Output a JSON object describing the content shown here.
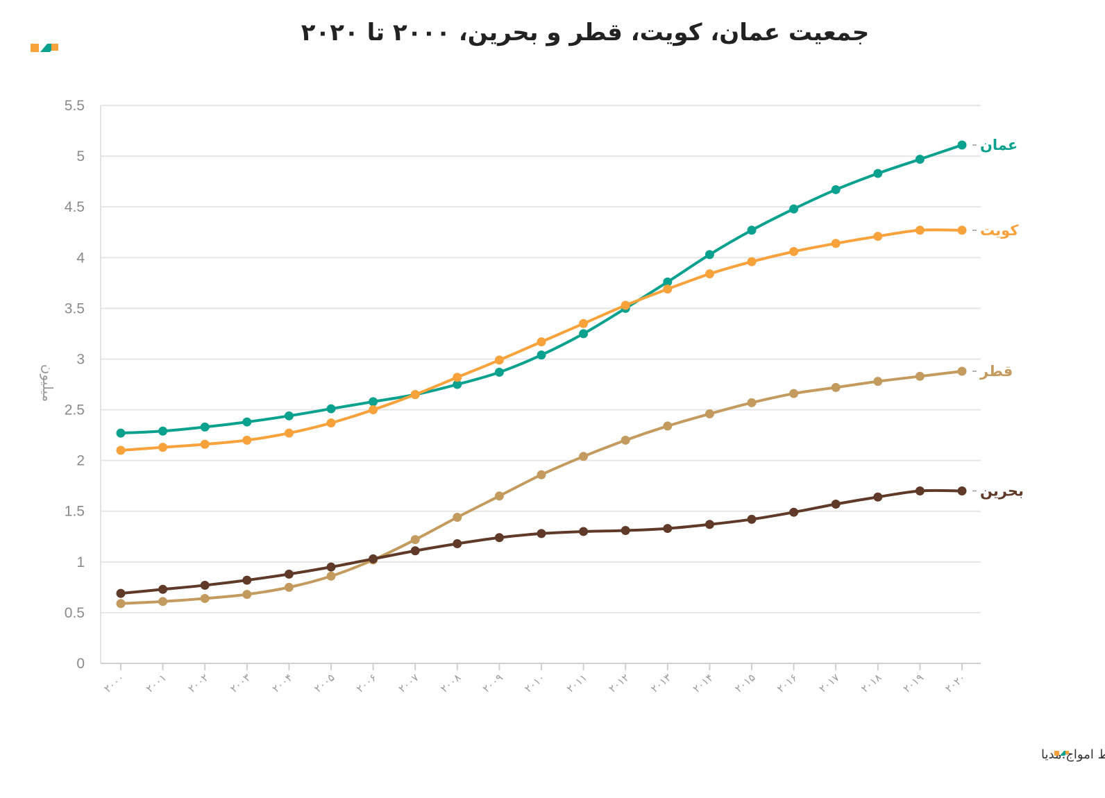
{
  "brand": {
    "logo_icon": "amvaj-logo-icon",
    "colors": {
      "orange": "#f7a23b",
      "teal": "#0aa28f"
    }
  },
  "source_text": "منبع: داده‌های آزاد بانک جهانی • تولیدشده توسط امواج.مدیا",
  "chart_data": {
    "type": "line",
    "title": "جمعیت عمان، کویت، قطر و بحرین، ۲۰۰۰ تا ۲۰۲۰",
    "ylabel": "میلیون",
    "xlabel": "",
    "ylim": [
      0,
      5.5
    ],
    "yticks": [
      0,
      0.5,
      1,
      1.5,
      2,
      2.5,
      3,
      3.5,
      4,
      4.5,
      5,
      5.5
    ],
    "ytick_labels": [
      "0",
      "0.5",
      "1",
      "1.5",
      "2",
      "2.5",
      "3",
      "3.5",
      "4",
      "4.5",
      "5",
      "5.5"
    ],
    "grid": true,
    "legend": "right-end labels",
    "categories": [
      "۲۰۰۰",
      "۲۰۰۱",
      "۲۰۰۲",
      "۲۰۰۳",
      "۲۰۰۴",
      "۲۰۰۵",
      "۲۰۰۶",
      "۲۰۰۷",
      "۲۰۰۸",
      "۲۰۰۹",
      "۲۰۱۰",
      "۲۰۱۱",
      "۲۰۱۲",
      "۲۰۱۳",
      "۲۰۱۴",
      "۲۰۱۵",
      "۲۰۱۶",
      "۲۰۱۷",
      "۲۰۱۸",
      "۲۰۱۹",
      "۲۰۲۰"
    ],
    "series": [
      {
        "name": "عمان",
        "color": "#0aa28f",
        "values": [
          2.27,
          2.29,
          2.33,
          2.38,
          2.44,
          2.51,
          2.58,
          2.65,
          2.75,
          2.87,
          3.04,
          3.25,
          3.5,
          3.76,
          4.03,
          4.27,
          4.48,
          4.67,
          4.83,
          4.97,
          5.11
        ]
      },
      {
        "name": "کویت",
        "color": "#f7a23b",
        "values": [
          2.1,
          2.13,
          2.16,
          2.2,
          2.27,
          2.37,
          2.5,
          2.65,
          2.82,
          2.99,
          3.17,
          3.35,
          3.53,
          3.69,
          3.84,
          3.96,
          4.06,
          4.14,
          4.21,
          4.27,
          4.27
        ]
      },
      {
        "name": "قطر",
        "color": "#c49b5e",
        "values": [
          0.59,
          0.61,
          0.64,
          0.68,
          0.75,
          0.86,
          1.02,
          1.22,
          1.44,
          1.65,
          1.86,
          2.04,
          2.2,
          2.34,
          2.46,
          2.57,
          2.66,
          2.72,
          2.78,
          2.83,
          2.88
        ]
      },
      {
        "name": "بحرین",
        "color": "#5f3a29",
        "values": [
          0.69,
          0.73,
          0.77,
          0.82,
          0.88,
          0.95,
          1.03,
          1.11,
          1.18,
          1.24,
          1.28,
          1.3,
          1.31,
          1.33,
          1.37,
          1.42,
          1.49,
          1.57,
          1.64,
          1.7,
          1.7
        ]
      }
    ]
  }
}
